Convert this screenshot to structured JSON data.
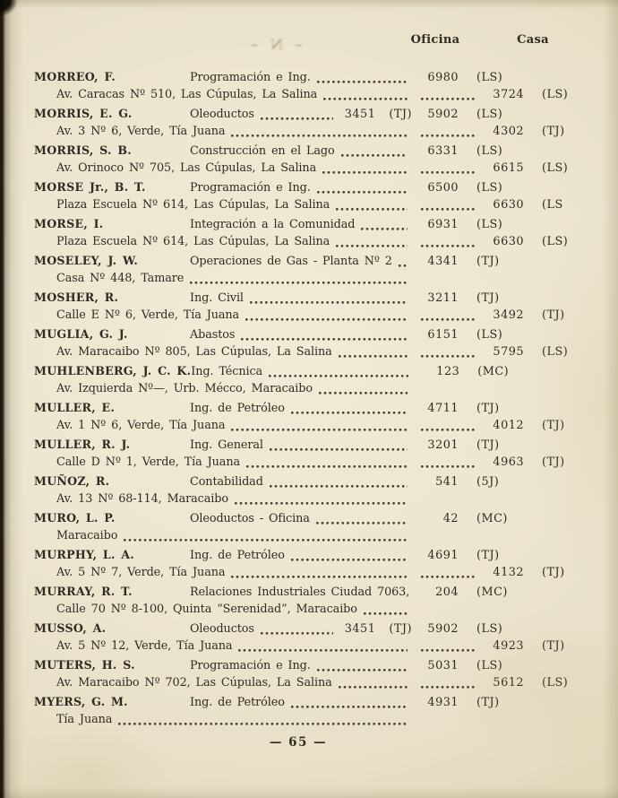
{
  "page": {
    "headers": {
      "oficina": "Oficina",
      "casa": "Casa"
    },
    "ghost_mark": "– N –",
    "page_number": "— 65 —",
    "ink_color": "#2f2b22",
    "paper_color": "#ece5cf",
    "entries": [
      {
        "name": "MORREO, F.",
        "dept": "Programación e Ing.",
        "dept_num": "",
        "dept_code": "",
        "office_num": "6980",
        "office_code": "(LS)",
        "address": "Av. Caracas Nº 510, Las Cúpulas, La Salina",
        "home_num": "3724",
        "home_code": "(LS)"
      },
      {
        "name": "MORRIS, E. G.",
        "dept": "Oleoductos",
        "dept_num": "3451",
        "dept_code": "(TJ)",
        "office_num": "5902",
        "office_code": "(LS)",
        "address": "Av. 3 Nº 6, Verde, Tía Juana",
        "home_num": "4302",
        "home_code": "(TJ)"
      },
      {
        "name": "MORRIS, S. B.",
        "dept": "Construcción en el Lago",
        "dept_num": "",
        "dept_code": "",
        "office_num": "6331",
        "office_code": "(LS)",
        "address": "Av. Orinoco Nº 705, Las Cúpulas, La Salina",
        "home_num": "6615",
        "home_code": "(LS)"
      },
      {
        "name": "MORSE Jr., B. T.",
        "dept": "Programación e Ing.",
        "dept_num": "",
        "dept_code": "",
        "office_num": "6500",
        "office_code": "(LS)",
        "address": "Plaza Escuela Nº 614, Las Cúpulas, La Salina",
        "home_num": "6630",
        "home_code": "(LS"
      },
      {
        "name": "MORSE, I.",
        "dept": "Integración a la Comunidad",
        "dept_num": "",
        "dept_code": "",
        "office_num": "6931",
        "office_code": "(LS)",
        "address": "Plaza Escuela Nº 614, Las Cúpulas, La Salina",
        "home_num": "6630",
        "home_code": "(LS)"
      },
      {
        "name": "MOSELEY, J. W.",
        "dept": "Operaciones de Gas - Planta Nº 2",
        "dept_num": "",
        "dept_code": "",
        "office_num": "4341",
        "office_code": "(TJ)",
        "address": "Casa Nº 448, Tamare",
        "home_num": "",
        "home_code": ""
      },
      {
        "name": "MOSHER, R.",
        "dept": "Ing. Civil",
        "dept_num": "",
        "dept_code": "",
        "office_num": "3211",
        "office_code": "(TJ)",
        "address": "Calle E Nº 6, Verde, Tía Juana",
        "home_num": "3492",
        "home_code": "(TJ)"
      },
      {
        "name": "MUGLIA, G. J.",
        "dept": "Abastos",
        "dept_num": "",
        "dept_code": "",
        "office_num": "6151",
        "office_code": "(LS)",
        "address": "Av. Maracaibo Nº 805, Las Cúpulas, La Salina",
        "home_num": "5795",
        "home_code": "(LS)"
      },
      {
        "name": "MUHLENBERG, J. C. K.",
        "dept": "Ing. Técnica",
        "dept_num": "",
        "dept_code": "",
        "office_num": "123",
        "office_code": "(MC)",
        "address": "Av. Izquierda Nº—, Urb. Mécco, Maracaibo",
        "home_num": "",
        "home_code": ""
      },
      {
        "name": "MULLER, E.",
        "dept": "Ing. de Petróleo",
        "dept_num": "",
        "dept_code": "",
        "office_num": "4711",
        "office_code": "(TJ)",
        "address": "Av. 1 Nº 6, Verde, Tía Juana",
        "home_num": "4012",
        "home_code": "(TJ)"
      },
      {
        "name": "MULLER, R. J.",
        "dept": "Ing. General",
        "dept_num": "",
        "dept_code": "",
        "office_num": "3201",
        "office_code": "(TJ)",
        "address": "Calle D Nº 1, Verde, Tía Juana",
        "home_num": "4963",
        "home_code": "(TJ)"
      },
      {
        "name": "MUÑOZ, R.",
        "dept": "Contabilidad",
        "dept_num": "",
        "dept_code": "",
        "office_num": "541",
        "office_code": "(5J)",
        "address": "Av. 13 Nº 68-114, Maracaibo",
        "home_num": "",
        "home_code": ""
      },
      {
        "name": "MURO, L. P.",
        "dept": "Oleoductos - Oficina",
        "dept_num": "",
        "dept_code": "",
        "office_num": "42",
        "office_code": "(MC)",
        "address": "Maracaibo",
        "home_num": "",
        "home_code": ""
      },
      {
        "name": "MURPHY, L. A.",
        "dept": "Ing. de Petróleo",
        "dept_num": "",
        "dept_code": "",
        "office_num": "4691",
        "office_code": "(TJ)",
        "address": "Av. 5 Nº 7, Verde, Tía Juana",
        "home_num": "4132",
        "home_code": "(TJ)"
      },
      {
        "name": "MURRAY, R. T.",
        "dept": "Relaciones Industriales Ciudad 7063,",
        "dept_num": "",
        "dept_code": "",
        "office_num": "204",
        "office_code": "(MC)",
        "address": "Calle 70 Nº 8-100, Quinta “Serenidad”, Maracaibo",
        "home_num": "",
        "home_code": ""
      },
      {
        "name": "MUSSO, A.",
        "dept": "Oleoductos",
        "dept_num": "3451",
        "dept_code": "(TJ)",
        "office_num": "5902",
        "office_code": "(LS)",
        "address": "Av. 5 Nº 12, Verde, Tía Juana",
        "home_num": "4923",
        "home_code": "(TJ)"
      },
      {
        "name": "MUTERS, H. S.",
        "dept": "Programación e Ing.",
        "dept_num": "",
        "dept_code": "",
        "office_num": "5031",
        "office_code": "(LS)",
        "address": "Av. Maracaibo Nº 702, Las Cúpulas, La Salina",
        "home_num": "5612",
        "home_code": "(LS)"
      },
      {
        "name": "MYERS, G. M.",
        "dept": "Ing. de Petróleo",
        "dept_num": "",
        "dept_code": "",
        "office_num": "4931",
        "office_code": "(TJ)",
        "address": "Tía Juana",
        "home_num": "",
        "home_code": ""
      }
    ]
  }
}
